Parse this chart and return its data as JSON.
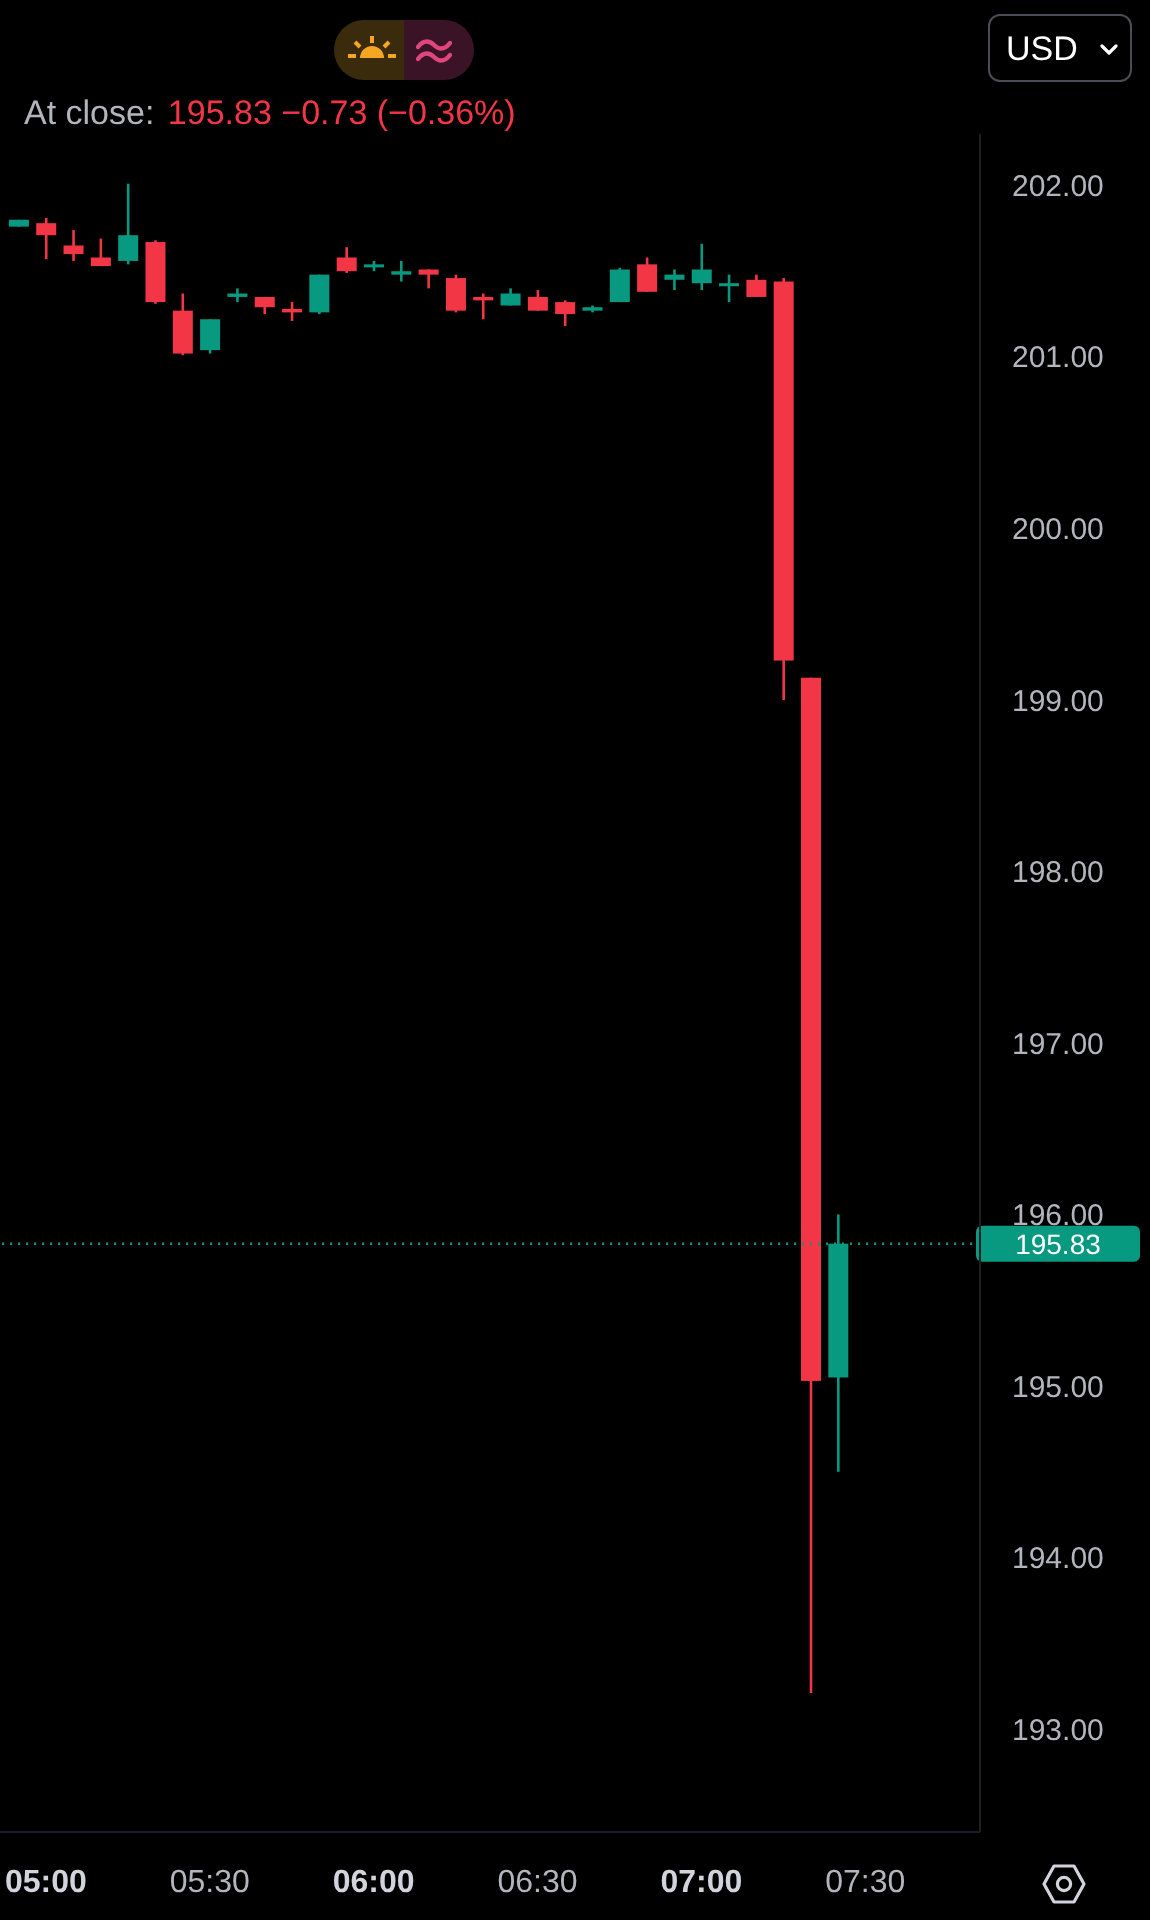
{
  "chart_data": {
    "type": "candlestick",
    "subtitle": "At close: 195.83 −0.73 (−0.36%)",
    "annotations": [
      "USD"
    ],
    "x": [
      4.9167,
      5,
      5.0833,
      5.1667,
      5.25,
      5.3333,
      5.4167,
      5.5,
      5.5833,
      5.6667,
      5.75,
      5.8333,
      5.9167,
      6,
      6.0833,
      6.1667,
      6.25,
      6.3333,
      6.4167,
      6.5,
      6.5833,
      6.6667,
      6.75,
      6.8333,
      6.9167,
      7,
      7.0833,
      7.1667,
      7.25,
      7.3333,
      7.4167
    ],
    "ohlc": [
      [
        201.76,
        201.8,
        201.76,
        201.8
      ],
      [
        201.78,
        201.81,
        201.57,
        201.71
      ],
      [
        201.65,
        201.74,
        201.56,
        201.6
      ],
      [
        201.58,
        201.69,
        201.53,
        201.53
      ],
      [
        201.56,
        202.01,
        201.54,
        201.71
      ],
      [
        201.67,
        201.68,
        201.31,
        201.32
      ],
      [
        201.27,
        201.37,
        201.01,
        201.02
      ],
      [
        201.04,
        201.22,
        201.02,
        201.22
      ],
      [
        201.35,
        201.4,
        201.32,
        201.37
      ],
      [
        201.35,
        201.35,
        201.25,
        201.29
      ],
      [
        201.28,
        201.32,
        201.21,
        201.26
      ],
      [
        201.26,
        201.48,
        201.25,
        201.48
      ],
      [
        201.58,
        201.64,
        201.49,
        201.5
      ],
      [
        201.53,
        201.56,
        201.5,
        201.54
      ],
      [
        201.48,
        201.56,
        201.44,
        201.5
      ],
      [
        201.51,
        201.51,
        201.4,
        201.48
      ],
      [
        201.46,
        201.48,
        201.26,
        201.27
      ],
      [
        201.35,
        201.37,
        201.22,
        201.33
      ],
      [
        201.3,
        201.4,
        201.3,
        201.37
      ],
      [
        201.35,
        201.39,
        201.27,
        201.27
      ],
      [
        201.32,
        201.33,
        201.18,
        201.25
      ],
      [
        201.27,
        201.3,
        201.26,
        201.29
      ],
      [
        201.32,
        201.52,
        201.32,
        201.51
      ],
      [
        201.54,
        201.58,
        201.38,
        201.38
      ],
      [
        201.45,
        201.51,
        201.39,
        201.48
      ],
      [
        201.43,
        201.66,
        201.39,
        201.51
      ],
      [
        201.42,
        201.48,
        201.32,
        201.43
      ],
      [
        201.45,
        201.48,
        201.35,
        201.35
      ],
      [
        201.44,
        201.46,
        199.0,
        199.23
      ],
      [
        199.13,
        199.13,
        193.21,
        195.03
      ],
      [
        195.05,
        196.0,
        194.5,
        195.83
      ]
    ],
    "colors": [
      "#089981",
      "#f23645",
      "#f23645",
      "#f23645",
      "#089981",
      "#f23645",
      "#f23645",
      "#089981",
      "#089981",
      "#f23645",
      "#f23645",
      "#089981",
      "#f23645",
      "#089981",
      "#089981",
      "#f23645",
      "#f23645",
      "#f23645",
      "#089981",
      "#f23645",
      "#f23645",
      "#089981",
      "#089981",
      "#f23645",
      "#089981",
      "#089981",
      "#089981",
      "#f23645",
      "#f23645",
      "#f23645",
      "#089981"
    ],
    "xlim": [
      4.86,
      7.85
    ],
    "xticks": [
      {
        "value": 5,
        "label": "05:00"
      },
      {
        "value": 5.5,
        "label": "05:30"
      },
      {
        "value": 6,
        "label": "06:00"
      },
      {
        "value": 6.5,
        "label": "06:30"
      },
      {
        "value": 7,
        "label": "07:00"
      },
      {
        "value": 7.5,
        "label": "07:30"
      }
    ],
    "ylim": [
      192.4,
      202.3
    ],
    "yticks": [
      {
        "value": 193,
        "label": "193.00"
      },
      {
        "value": 194,
        "label": "194.00"
      },
      {
        "value": 195,
        "label": "195.00"
      },
      {
        "value": 196,
        "label": "196.00"
      },
      {
        "value": 197,
        "label": "197.00"
      },
      {
        "value": 198,
        "label": "198.00"
      },
      {
        "value": 199,
        "label": "199.00"
      },
      {
        "value": 200,
        "label": "200.00"
      },
      {
        "value": 201,
        "label": "201.00"
      },
      {
        "value": 202,
        "label": "202.00"
      }
    ],
    "ref_lines": [
      {
        "axis": "y",
        "value": 195.83,
        "label": "195.83",
        "color": "#089981",
        "line_style": "dotted"
      }
    ]
  }
}
